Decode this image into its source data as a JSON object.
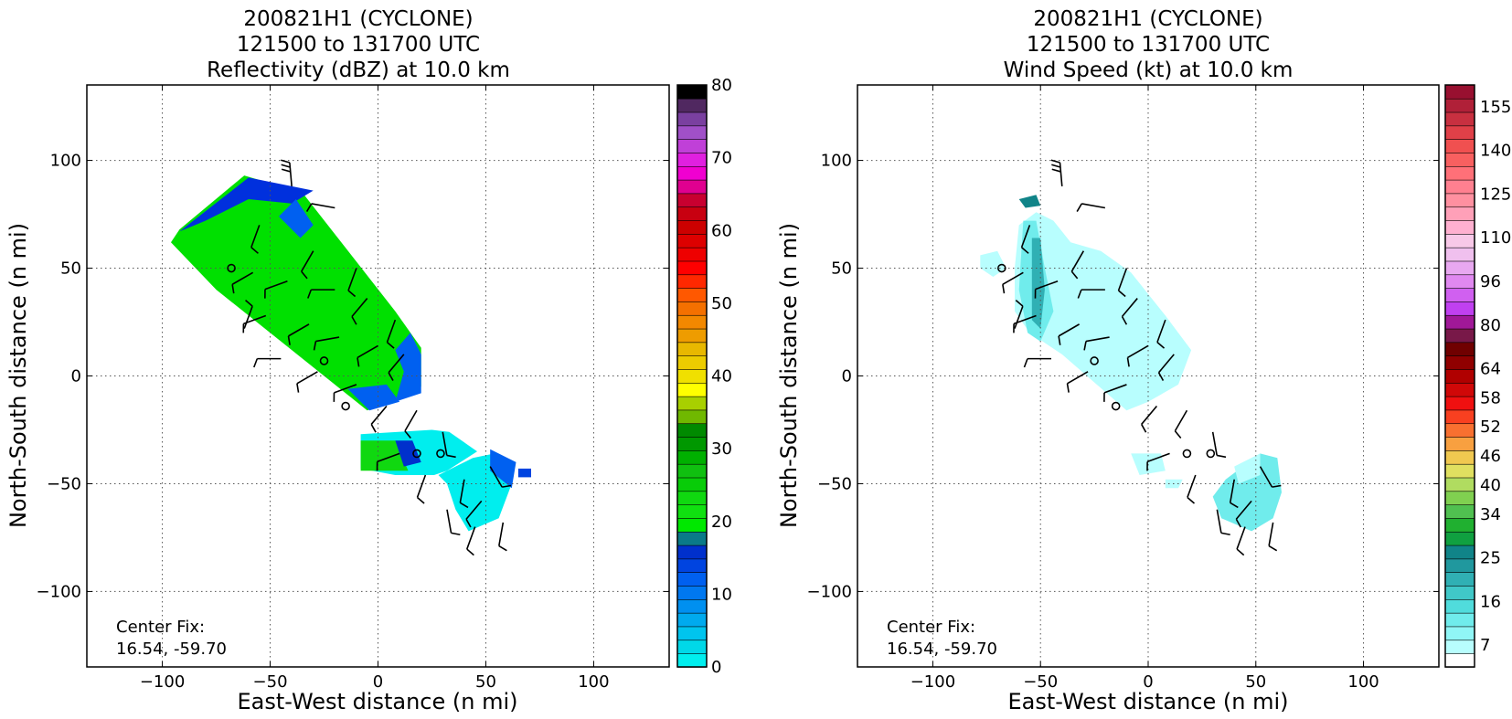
{
  "chart_data": [
    {
      "type": "heatmap",
      "title_lines": [
        "200821H1 (CYCLONE)",
        "121500 to 131700 UTC",
        "Reflectivity (dBZ) at 10.0 km"
      ],
      "xlabel": "East-West distance (n mi)",
      "ylabel": "North-South distance (n mi)",
      "xlim": [
        -135,
        135
      ],
      "ylim": [
        -135,
        135
      ],
      "xticks": [
        -100,
        -50,
        0,
        50,
        100
      ],
      "yticks": [
        -100,
        -50,
        0,
        50,
        100
      ],
      "grid": true,
      "annotation": {
        "line1": "Center Fix:",
        "line2": "16.54, -59.70"
      },
      "colorbar": {
        "min": 0,
        "max": 80,
        "colors": [
          "#00eeee",
          "#00d8e8",
          "#00c4ee",
          "#00aaee",
          "#0090f0",
          "#0078f0",
          "#0060f0",
          "#0044e0",
          "#0030cc",
          "#0a7a88",
          "#00e800",
          "#10e010",
          "#10d810",
          "#08cc08",
          "#10c010",
          "#00b000",
          "#009800",
          "#008a00",
          "#70b800",
          "#a8d000",
          "#ffff00",
          "#f0e000",
          "#eccc00",
          "#e8b800",
          "#ee9c00",
          "#f28800",
          "#f47000",
          "#ff5800",
          "#ff2800",
          "#ff0000",
          "#ee0000",
          "#dd0000",
          "#cc0000",
          "#c80010",
          "#c80030",
          "#e00090",
          "#f000d0",
          "#e020e0",
          "#c040d8",
          "#a050c8",
          "#7a40a0",
          "#502860",
          "#000000"
        ],
        "ticks": [
          0,
          10,
          20,
          30,
          40,
          50,
          60,
          70,
          80
        ]
      },
      "regions": [
        {
          "color": "#00e000",
          "points": [
            [
              -92,
              68
            ],
            [
              -62,
              93
            ],
            [
              -35,
              85
            ],
            [
              8,
              30
            ],
            [
              20,
              13
            ],
            [
              20,
              -5
            ],
            [
              -5,
              -16
            ],
            [
              -75,
              40
            ],
            [
              -96,
              62
            ]
          ]
        },
        {
          "color": "#0030dd",
          "points": [
            [
              -92,
              67
            ],
            [
              -60,
              92
            ],
            [
              -30,
              86
            ],
            [
              -40,
              80
            ],
            [
              -60,
              82
            ],
            [
              -80,
              72
            ]
          ]
        },
        {
          "color": "#0060f0",
          "points": [
            [
              -38,
              82
            ],
            [
              -30,
              70
            ],
            [
              -36,
              64
            ],
            [
              -46,
              74
            ]
          ]
        },
        {
          "color": "#0060f0",
          "points": [
            [
              15,
              20
            ],
            [
              20,
              10
            ],
            [
              20,
              -8
            ],
            [
              8,
              -12
            ],
            [
              12,
              2
            ],
            [
              8,
              12
            ]
          ]
        },
        {
          "color": "#0060f0",
          "points": [
            [
              -14,
              -6
            ],
            [
              -4,
              -16
            ],
            [
              10,
              -12
            ],
            [
              4,
              -4
            ]
          ]
        },
        {
          "color": "#00eeee",
          "points": [
            [
              -8,
              -27
            ],
            [
              25,
              -25
            ],
            [
              33,
              -26
            ],
            [
              46,
              -35
            ],
            [
              32,
              -44
            ],
            [
              26,
              -46
            ],
            [
              8,
              -46
            ],
            [
              -8,
              -43
            ]
          ]
        },
        {
          "color": "#10d810",
          "points": [
            [
              -8,
              -30
            ],
            [
              8,
              -30
            ],
            [
              14,
              -44
            ],
            [
              -8,
              -44
            ]
          ]
        },
        {
          "color": "#0030cc",
          "points": [
            [
              8,
              -30
            ],
            [
              16,
              -30
            ],
            [
              20,
              -40
            ],
            [
              12,
              -42
            ]
          ]
        },
        {
          "color": "#00eeee",
          "points": [
            [
              28,
              -46
            ],
            [
              44,
              -38
            ],
            [
              54,
              -36
            ],
            [
              62,
              -50
            ],
            [
              56,
              -66
            ],
            [
              42,
              -72
            ],
            [
              36,
              -62
            ],
            [
              32,
              -50
            ]
          ]
        },
        {
          "color": "#0060f0",
          "points": [
            [
              52,
              -34
            ],
            [
              64,
              -40
            ],
            [
              62,
              -52
            ],
            [
              52,
              -44
            ]
          ]
        },
        {
          "color": "#0044e0",
          "points": [
            [
              65,
              -43
            ],
            [
              71,
              -43
            ],
            [
              71,
              -47
            ],
            [
              65,
              -47
            ]
          ]
        }
      ]
    },
    {
      "type": "heatmap",
      "title_lines": [
        "200821H1 (CYCLONE)",
        "121500 to 131700 UTC",
        "Wind Speed (kt) at 10.0 km"
      ],
      "xlabel": "East-West distance (n mi)",
      "ylabel": "North-South distance (n mi)",
      "xlim": [
        -135,
        135
      ],
      "ylim": [
        -135,
        135
      ],
      "xticks": [
        -100,
        -50,
        0,
        50,
        100
      ],
      "yticks": [
        -100,
        -50,
        0,
        50,
        100
      ],
      "grid": true,
      "annotation": {
        "line1": "Center Fix:",
        "line2": "16.54, -59.70"
      },
      "colorbar": {
        "min": 1,
        "max": 161,
        "colors": [
          "#ffffff",
          "#b8fefe",
          "#90f6f6",
          "#70ecec",
          "#50dcdc",
          "#40c8c8",
          "#30b0b4",
          "#20989e",
          "#108488",
          "#10a040",
          "#20b030",
          "#50c050",
          "#80d050",
          "#b0dc60",
          "#e0e060",
          "#f0c850",
          "#f8a040",
          "#f87030",
          "#f84020",
          "#f01010",
          "#d00808",
          "#b00000",
          "#900000",
          "#700000",
          "#781848",
          "#a01898",
          "#c040f0",
          "#d060f0",
          "#e088f0",
          "#e8a8f0",
          "#f0c0ee",
          "#f8c8e8",
          "#ffb0d0",
          "#ffa0b8",
          "#ff90a0",
          "#ff8090",
          "#ff7078",
          "#f86060",
          "#f05050",
          "#e04048",
          "#c83040",
          "#b02038",
          "#981030"
        ],
        "tick_values": [
          7,
          16,
          25,
          34,
          40,
          46,
          52,
          58,
          64,
          80,
          96,
          110,
          125,
          140,
          155
        ],
        "tick_positions": [
          1.5,
          4.5,
          7.5,
          10.5,
          12.5,
          14.5,
          16.5,
          18.5,
          20.5,
          23.5,
          26.5,
          29.5,
          32.5,
          35.5,
          38.5
        ],
        "levels": 40
      },
      "regions": [
        {
          "color": "#b8fefe",
          "points": [
            [
              -60,
              70
            ],
            [
              -52,
              76
            ],
            [
              -44,
              72
            ],
            [
              -36,
              62
            ],
            [
              -22,
              58
            ],
            [
              -8,
              48
            ],
            [
              8,
              28
            ],
            [
              20,
              12
            ],
            [
              14,
              -4
            ],
            [
              0,
              -12
            ],
            [
              -10,
              -16
            ],
            [
              -40,
              10
            ],
            [
              -55,
              20
            ],
            [
              -62,
              30
            ],
            [
              -62,
              50
            ]
          ]
        },
        {
          "color": "#70ecec",
          "points": [
            [
              -58,
              72
            ],
            [
              -52,
              72
            ],
            [
              -48,
              50
            ],
            [
              -44,
              30
            ],
            [
              -50,
              16
            ],
            [
              -56,
              20
            ],
            [
              -60,
              40
            ]
          ]
        },
        {
          "color": "#30b0b4",
          "points": [
            [
              -54,
              64
            ],
            [
              -50,
              64
            ],
            [
              -48,
              40
            ],
            [
              -50,
              22
            ],
            [
              -54,
              26
            ]
          ]
        },
        {
          "color": "#b8fefe",
          "points": [
            [
              -78,
              56
            ],
            [
              -70,
              58
            ],
            [
              -66,
              50
            ],
            [
              -72,
              46
            ],
            [
              -78,
              50
            ]
          ]
        },
        {
          "color": "#108488",
          "points": [
            [
              -60,
              82
            ],
            [
              -52,
              84
            ],
            [
              -50,
              79
            ],
            [
              -57,
              78
            ]
          ]
        },
        {
          "color": "#b8fefe",
          "points": [
            [
              -8,
              -36
            ],
            [
              6,
              -36
            ],
            [
              8,
              -44
            ],
            [
              -4,
              -46
            ]
          ]
        },
        {
          "color": "#b8fefe",
          "points": [
            [
              8,
              -48
            ],
            [
              16,
              -48
            ],
            [
              14,
              -52
            ],
            [
              8,
              -52
            ]
          ]
        },
        {
          "color": "#70ecec",
          "points": [
            [
              36,
              -48
            ],
            [
              52,
              -36
            ],
            [
              60,
              -38
            ],
            [
              62,
              -54
            ],
            [
              58,
              -66
            ],
            [
              48,
              -72
            ],
            [
              34,
              -66
            ],
            [
              30,
              -56
            ]
          ]
        },
        {
          "color": "#b8fefe",
          "points": [
            [
              40,
              -42
            ],
            [
              52,
              -36
            ],
            [
              52,
              -46
            ],
            [
              42,
              -50
            ]
          ]
        }
      ]
    }
  ],
  "wind_barbs": [
    [
      -40,
      88,
      95,
      3
    ],
    [
      -20,
      78,
      170,
      1
    ],
    [
      -55,
      70,
      250,
      1
    ],
    [
      -30,
      58,
      240,
      1
    ],
    [
      -10,
      50,
      250,
      1
    ],
    [
      -58,
      48,
      210,
      1
    ],
    [
      -42,
      44,
      200,
      1
    ],
    [
      -20,
      40,
      180,
      1
    ],
    [
      -5,
      36,
      230,
      1
    ],
    [
      8,
      26,
      250,
      1
    ],
    [
      -52,
      28,
      200,
      1
    ],
    [
      -32,
      24,
      210,
      1
    ],
    [
      -18,
      18,
      190,
      1
    ],
    [
      0,
      14,
      210,
      1
    ],
    [
      12,
      10,
      230,
      1
    ],
    [
      -45,
      8,
      180,
      1
    ],
    [
      -28,
      2,
      210,
      1
    ],
    [
      -10,
      -4,
      200,
      1
    ],
    [
      4,
      -14,
      230,
      1
    ],
    [
      -62,
      22,
      70,
      1
    ],
    [
      18,
      -16,
      240,
      1
    ],
    [
      30,
      -26,
      280,
      1
    ],
    [
      10,
      -36,
      200,
      1
    ],
    [
      22,
      -46,
      250,
      1
    ],
    [
      40,
      -48,
      260,
      1
    ],
    [
      52,
      -42,
      300,
      1
    ],
    [
      48,
      -58,
      230,
      1
    ],
    [
      32,
      -62,
      280,
      1
    ],
    [
      45,
      -70,
      250,
      1
    ],
    [
      58,
      -68,
      260,
      1
    ]
  ],
  "circles": [
    [
      -68,
      50
    ],
    [
      -25,
      7
    ],
    [
      -15,
      -14
    ],
    [
      18,
      -36
    ],
    [
      29,
      -36
    ]
  ]
}
